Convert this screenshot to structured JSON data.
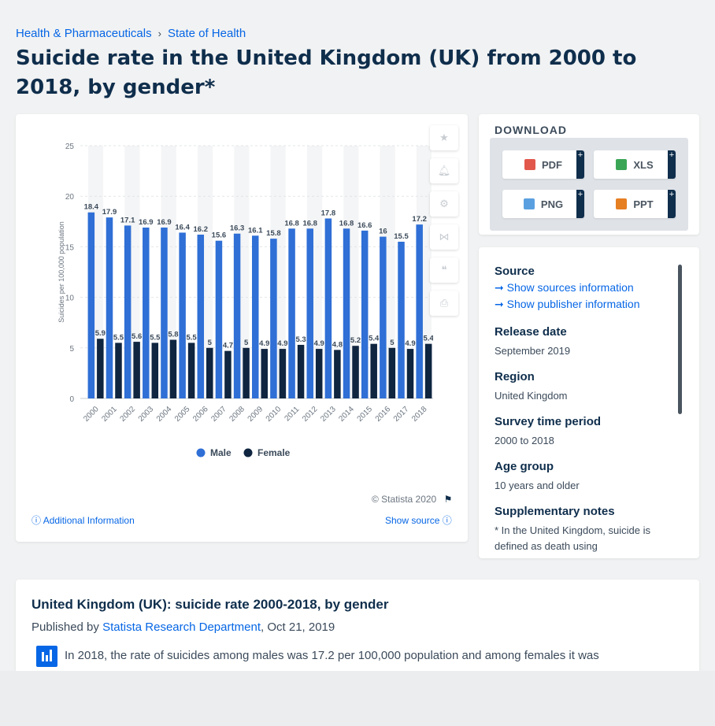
{
  "breadcrumb": {
    "item1": "Health & Pharmaceuticals",
    "sep": "›",
    "item2": "State of Health"
  },
  "title": "Suicide rate in the United Kingdom (UK) from 2000 to 2018, by gender*",
  "chart_data": {
    "type": "bar",
    "categories": [
      "2000",
      "2001",
      "2002",
      "2003",
      "2004",
      "2005",
      "2006",
      "2007",
      "2008",
      "2009",
      "2010",
      "2011",
      "2012",
      "2013",
      "2014",
      "2015",
      "2016",
      "2017",
      "2018"
    ],
    "series": [
      {
        "name": "Male",
        "values": [
          18.4,
          17.9,
          17.1,
          16.9,
          16.9,
          16.4,
          16.2,
          15.6,
          16.3,
          16.1,
          15.8,
          16.8,
          16.8,
          17.8,
          16.8,
          16.6,
          16,
          15.5,
          17.2
        ],
        "color": "#2f6fd6"
      },
      {
        "name": "Female",
        "values": [
          5.9,
          5.5,
          5.6,
          5.5,
          5.8,
          5.5,
          5,
          4.7,
          5,
          4.9,
          4.9,
          5.3,
          4.9,
          4.8,
          5.2,
          5.4,
          5,
          4.9,
          5.4
        ],
        "color": "#0f2540"
      }
    ],
    "ylabel": "Suicides per 100,000 population",
    "ylim": [
      0,
      25
    ],
    "yticks": [
      0,
      5,
      10,
      15,
      20,
      25
    ],
    "legend_position": "bottom"
  },
  "chart_meta": {
    "credit": "© Statista 2020",
    "additional_info": "Additional Information",
    "show_source": "Show source"
  },
  "download": {
    "title": "DOWNLOAD",
    "buttons": [
      {
        "label": "PDF",
        "color": "#e2574c"
      },
      {
        "label": "XLS",
        "color": "#3aa655"
      },
      {
        "label": "PNG",
        "color": "#5aa0e0"
      },
      {
        "label": "PPT",
        "color": "#e67e22"
      }
    ],
    "plus": "+"
  },
  "info": {
    "source_label": "Source",
    "show_sources": "Show sources information",
    "show_publisher": "Show publisher information",
    "release_label": "Release date",
    "release_value": "September 2019",
    "region_label": "Region",
    "region_value": "United Kingdom",
    "survey_label": "Survey time period",
    "survey_value": "2000 to 2018",
    "age_label": "Age group",
    "age_value": "10 years and older",
    "notes_label": "Supplementary notes",
    "notes_value": "* In the United Kingdom, suicide is defined as death using"
  },
  "statistic": {
    "title": "United Kingdom (UK): suicide rate 2000-2018, by gender",
    "published_by": "Published by",
    "publisher": "Statista Research Department",
    "date": ", Oct 21, 2019",
    "text": "In 2018, the rate of suicides among males was 17.2 per 100,000 population and among females it was"
  }
}
